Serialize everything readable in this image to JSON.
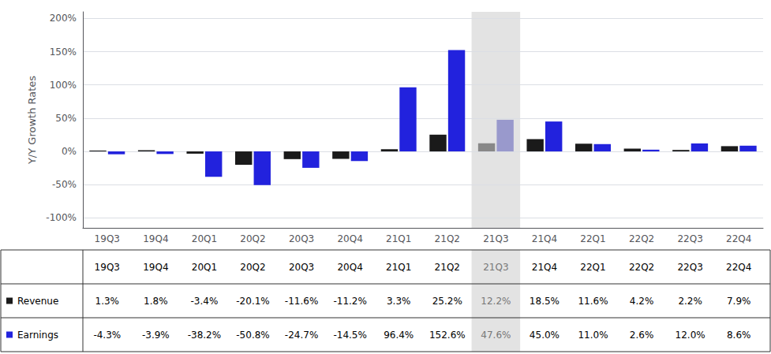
{
  "chart_data": {
    "type": "bar",
    "ylabel": "Y/Y Growth Rates",
    "categories": [
      "19Q3",
      "19Q4",
      "20Q1",
      "20Q2",
      "20Q3",
      "20Q4",
      "21Q1",
      "21Q2",
      "21Q3",
      "21Q4",
      "22Q1",
      "22Q2",
      "22Q3",
      "22Q4"
    ],
    "series": [
      {
        "name": "Revenue",
        "color": "#1a1a1a",
        "colors": [
          "#1a1a1a",
          "#1a1a1a",
          "#1a1a1a",
          "#1a1a1a",
          "#1a1a1a",
          "#1a1a1a",
          "#1a1a1a",
          "#1a1a1a",
          "#888888",
          "#1a1a1a",
          "#1a1a1a",
          "#1a1a1a",
          "#1a1a1a",
          "#1a1a1a"
        ],
        "values": [
          0.013,
          0.018,
          -0.034,
          -0.201,
          -0.116,
          -0.112,
          0.033,
          0.252,
          0.122,
          0.185,
          0.116,
          0.042,
          0.022,
          0.079
        ],
        "value_labels": [
          "1.3%",
          "1.8%",
          "-3.4%",
          "-20.1%",
          "-11.6%",
          "-11.2%",
          "3.3%",
          "25.2%",
          "12.2%",
          "18.5%",
          "11.6%",
          "4.2%",
          "2.2%",
          "7.9%"
        ]
      },
      {
        "name": "Earnings",
        "color": "#2222dd",
        "colors": [
          "#2222dd",
          "#2222dd",
          "#2222dd",
          "#2222dd",
          "#2222dd",
          "#2222dd",
          "#2222dd",
          "#2222dd",
          "#9999cc",
          "#2222dd",
          "#2222dd",
          "#2222dd",
          "#2222dd",
          "#2222dd"
        ],
        "values": [
          -0.043,
          -0.039,
          -0.382,
          -0.508,
          -0.247,
          -0.145,
          0.964,
          1.526,
          0.476,
          0.45,
          0.11,
          0.026,
          0.12,
          0.086
        ],
        "value_labels": [
          "-4.3%",
          "-3.9%",
          "-38.2%",
          "-50.8%",
          "-24.7%",
          "-14.5%",
          "96.4%",
          "152.6%",
          "47.6%",
          "45.0%",
          "11.0%",
          "2.6%",
          "12.0%",
          "8.6%"
        ]
      }
    ],
    "ylim": [
      -1.15,
      2.1
    ],
    "yticks": [
      {
        "value": -1.0,
        "label": "-100%"
      },
      {
        "value": -0.5,
        "label": "-50%"
      },
      {
        "value": 0.0,
        "label": "0%"
      },
      {
        "value": 0.5,
        "label": "50%"
      },
      {
        "value": 1.0,
        "label": "100%"
      },
      {
        "value": 1.5,
        "label": "150%"
      },
      {
        "value": 2.0,
        "label": "200%"
      }
    ],
    "grid": true
  }
}
